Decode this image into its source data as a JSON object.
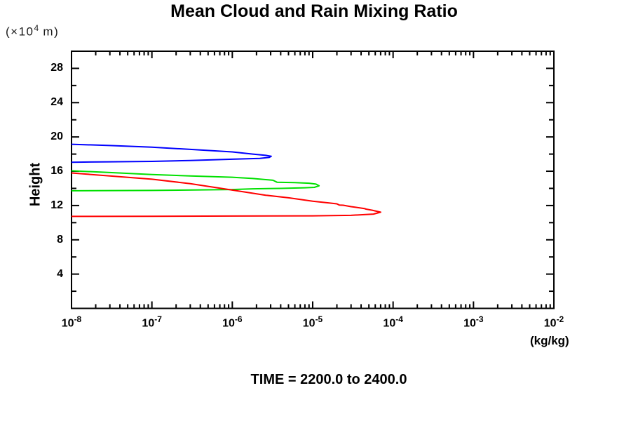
{
  "header": {
    "title": "Mean Cloud and Rain Mixing Ratio"
  },
  "y_axis": {
    "label": "Height",
    "unit_prefix": "(×10",
    "unit_exp": "4",
    "unit_suffix": " m)"
  },
  "x_axis": {
    "unit": "(kg/kg)"
  },
  "caption": {
    "time_label": "TIME = 2200.0 to 2400.0"
  },
  "colors": {
    "frame": "#000000",
    "blue": "#0000ff",
    "green": "#00e000",
    "red": "#ff0000"
  },
  "chart_data": {
    "type": "line",
    "title": "Mean Cloud and Rain Mixing Ratio",
    "xlabel": "(kg/kg)",
    "ylabel": "Height (×10^4 m)",
    "x_scale": "log",
    "xlim": [
      1e-08,
      0.01
    ],
    "ylim": [
      0,
      30
    ],
    "grid": false,
    "legend": "none",
    "x_ticks": [
      {
        "exponent": -8,
        "base": "10",
        "exp_label": "-8"
      },
      {
        "exponent": -7,
        "base": "10",
        "exp_label": "-7"
      },
      {
        "exponent": -6,
        "base": "10",
        "exp_label": "-6"
      },
      {
        "exponent": -5,
        "base": "10",
        "exp_label": "-5"
      },
      {
        "exponent": -4,
        "base": "10",
        "exp_label": "-4"
      },
      {
        "exponent": -3,
        "base": "10",
        "exp_label": "-3"
      },
      {
        "exponent": -2,
        "base": "10",
        "exp_label": "-2"
      }
    ],
    "y_major_ticks": [
      {
        "value": 4,
        "label": "4"
      },
      {
        "value": 8,
        "label": "8"
      },
      {
        "value": 12,
        "label": "12"
      },
      {
        "value": 16,
        "label": "16"
      },
      {
        "value": 20,
        "label": "20"
      },
      {
        "value": 24,
        "label": "24"
      },
      {
        "value": 28,
        "label": "28"
      }
    ],
    "y_minor_ticks": [
      2,
      6,
      10,
      14,
      18,
      22,
      26,
      30
    ],
    "series": [
      {
        "name": "blue-profile",
        "color": "#0000ff",
        "points": [
          [
            1e-08,
            19.15
          ],
          [
            3e-08,
            19.0
          ],
          [
            1e-07,
            18.8
          ],
          [
            3e-07,
            18.55
          ],
          [
            1e-06,
            18.25
          ],
          [
            1.8e-06,
            18.0
          ],
          [
            2.6e-06,
            17.85
          ],
          [
            3.05e-06,
            17.75
          ],
          [
            2.9e-06,
            17.62
          ],
          [
            2.2e-06,
            17.5
          ],
          [
            1e-06,
            17.4
          ],
          [
            3e-07,
            17.25
          ],
          [
            1e-07,
            17.15
          ],
          [
            3e-08,
            17.1
          ],
          [
            1e-08,
            17.05
          ]
        ]
      },
      {
        "name": "green-profile",
        "color": "#00e000",
        "points": [
          [
            1e-08,
            16.05
          ],
          [
            3e-08,
            15.85
          ],
          [
            1e-07,
            15.62
          ],
          [
            3e-07,
            15.45
          ],
          [
            1e-06,
            15.3
          ],
          [
            1.8e-06,
            15.15
          ],
          [
            3.2e-06,
            14.95
          ],
          [
            3.6e-06,
            14.72
          ],
          [
            6e-06,
            14.68
          ],
          [
            9e-06,
            14.6
          ],
          [
            1.1e-05,
            14.5
          ],
          [
            1.2e-05,
            14.3
          ],
          [
            1.05e-05,
            14.12
          ],
          [
            8e-06,
            14.07
          ],
          [
            4e-06,
            14.0
          ],
          [
            1.8e-06,
            13.95
          ],
          [
            1e-06,
            13.87
          ],
          [
            1e-07,
            13.76
          ],
          [
            1e-08,
            13.72
          ]
        ]
      },
      {
        "name": "red-profile",
        "color": "#ff0000",
        "points": [
          [
            1e-08,
            15.8
          ],
          [
            3e-08,
            15.45
          ],
          [
            1e-07,
            15.07
          ],
          [
            3e-07,
            14.55
          ],
          [
            1e-06,
            13.8
          ],
          [
            2.6e-06,
            13.2
          ],
          [
            5e-06,
            12.9
          ],
          [
            1e-05,
            12.5
          ],
          [
            1.6e-05,
            12.3
          ],
          [
            2e-05,
            12.2
          ],
          [
            2.15e-05,
            12.05
          ],
          [
            2.4e-05,
            12.03
          ],
          [
            3e-05,
            11.87
          ],
          [
            4.4e-05,
            11.65
          ],
          [
            4.6e-05,
            11.58
          ],
          [
            5.5e-05,
            11.45
          ],
          [
            7e-05,
            11.22
          ],
          [
            5.7e-05,
            11.0
          ],
          [
            3e-05,
            10.85
          ],
          [
            1e-05,
            10.8
          ],
          [
            1e-06,
            10.77
          ],
          [
            1e-07,
            10.74
          ],
          [
            1e-08,
            10.73
          ]
        ]
      }
    ]
  }
}
